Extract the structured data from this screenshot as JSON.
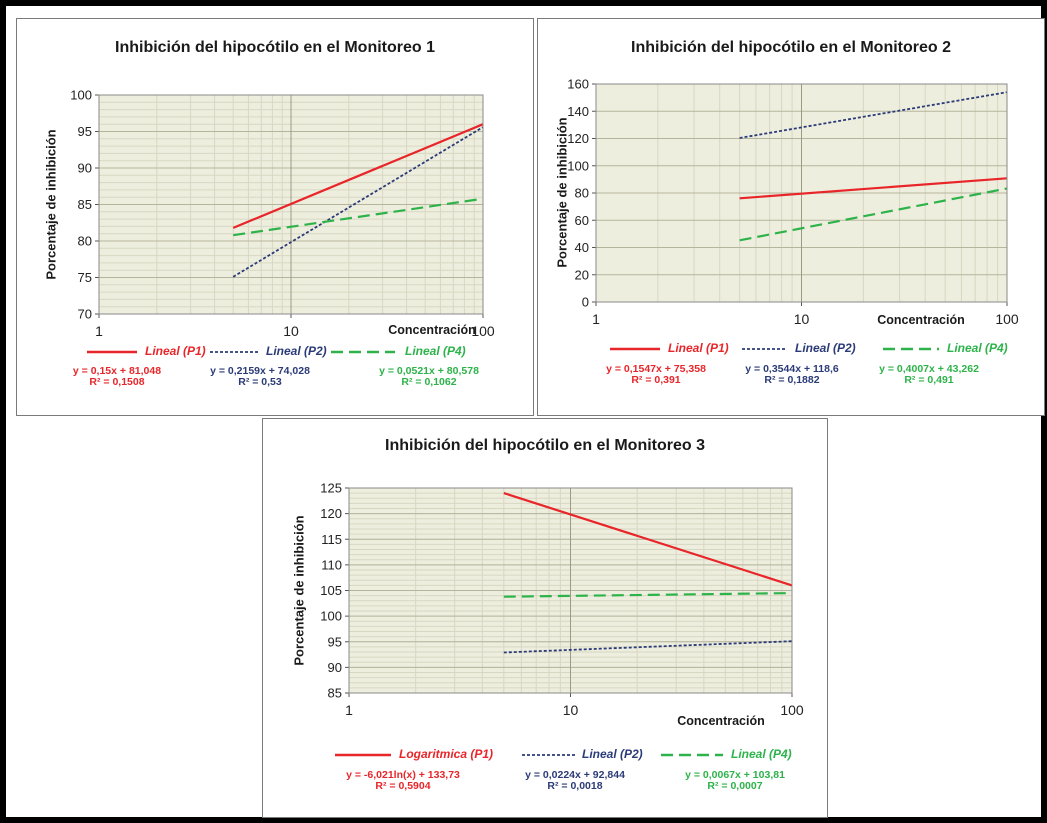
{
  "chart_data": [
    {
      "type": "line",
      "title": "Inhibición del hipocótilo en el Monitoreo 1",
      "xlabel": "Concentración",
      "ylabel": "Porcentaje de inhibición",
      "xscale": "log",
      "xlim": [
        1,
        100
      ],
      "ylim": [
        70,
        100
      ],
      "xticks": [
        "1",
        "10",
        "100"
      ],
      "yticks": [
        "70",
        "75",
        "80",
        "85",
        "90",
        "95",
        "100"
      ],
      "ygrid_minor": 1,
      "grid": true,
      "legend_position": "bottom",
      "series": [
        {
          "name": "Lineal (P1)",
          "color": "#e8262a",
          "style": "solid",
          "x": [
            5,
            100
          ],
          "y": [
            81.8,
            96.0
          ],
          "equation": "y = 0,15x + 81,048",
          "r2": "R² = 0,1508"
        },
        {
          "name": "Lineal (P2)",
          "color": "#2b3b78",
          "style": "dotted",
          "x": [
            5,
            100
          ],
          "y": [
            75.1,
            95.6
          ],
          "equation": "y = 0,2159x + 74,028",
          "r2": "R² = 0,53"
        },
        {
          "name": "Lineal (P4)",
          "color": "#2db34a",
          "style": "dashed",
          "x": [
            5,
            100
          ],
          "y": [
            80.8,
            85.8
          ],
          "equation": "y = 0,0521x + 80,578",
          "r2": "R² = 0,1062"
        }
      ]
    },
    {
      "type": "line",
      "title": "Inhibición del hipocótilo en el Monitoreo 2",
      "xlabel": "Concentración",
      "ylabel": "Porcentaje de inhibición",
      "xscale": "log",
      "xlim": [
        1,
        100
      ],
      "ylim": [
        0,
        160
      ],
      "xticks": [
        "1",
        "10",
        "100"
      ],
      "yticks": [
        "0",
        "20",
        "40",
        "60",
        "80",
        "100",
        "120",
        "140",
        "160"
      ],
      "grid": true,
      "legend_position": "bottom",
      "series": [
        {
          "name": "Lineal (P1)",
          "color": "#e8262a",
          "style": "solid",
          "x": [
            5,
            100
          ],
          "y": [
            76.1,
            90.8
          ],
          "equation": "y = 0,1547x + 75,358",
          "r2": "R² = 0,391"
        },
        {
          "name": "Lineal (P2)",
          "color": "#2b3b78",
          "style": "dotted",
          "x": [
            5,
            100
          ],
          "y": [
            120.4,
            154.0
          ],
          "equation": "y = 0,3544x + 118,6",
          "r2": "R² = 0,1882"
        },
        {
          "name": "Lineal (P4)",
          "color": "#2db34a",
          "style": "dashed",
          "x": [
            5,
            100
          ],
          "y": [
            45.3,
            83.3
          ],
          "equation": "y = 0,4007x + 43,262",
          "r2": "R² = 0,491"
        }
      ]
    },
    {
      "type": "line",
      "title": "Inhibición del hipocótilo en el Monitoreo 3",
      "xlabel": "Concentración",
      "ylabel": "Porcentaje de inhibición",
      "xscale": "log",
      "xlim": [
        1,
        100
      ],
      "ylim": [
        85,
        125
      ],
      "xticks": [
        "1",
        "10",
        "100"
      ],
      "yticks": [
        "85",
        "90",
        "95",
        "100",
        "105",
        "110",
        "115",
        "120",
        "125"
      ],
      "ygrid_minor": 1,
      "grid": true,
      "legend_position": "bottom",
      "series": [
        {
          "name": "Logaritmica (P1)",
          "color": "#e8262a",
          "style": "solid",
          "x": [
            5,
            100
          ],
          "y": [
            124.0,
            106.0
          ],
          "equation": "y = -6,021ln(x) + 133,73",
          "r2": "R² = 0,5904"
        },
        {
          "name": "Lineal (P2)",
          "color": "#2b3b78",
          "style": "dotted",
          "x": [
            5,
            100
          ],
          "y": [
            92.9,
            95.1
          ],
          "equation": "y = 0,0224x + 92,844",
          "r2": "R² = 0,0018"
        },
        {
          "name": "Lineal (P4)",
          "color": "#2db34a",
          "style": "dashed",
          "x": [
            5,
            100
          ],
          "y": [
            103.8,
            104.5
          ],
          "equation": "y = 0,0067x + 103,81",
          "r2": "R² = 0,0007"
        }
      ]
    }
  ]
}
